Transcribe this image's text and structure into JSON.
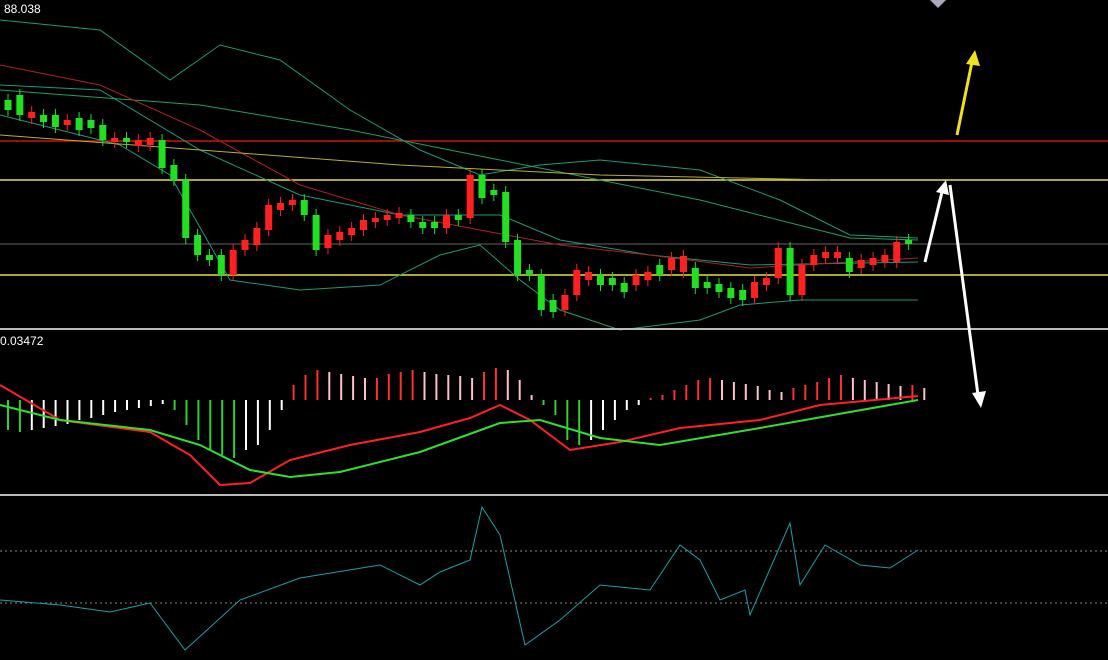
{
  "price_pane": {
    "label": "88.038"
  },
  "macd_pane": {
    "label": "0.03472"
  }
}
